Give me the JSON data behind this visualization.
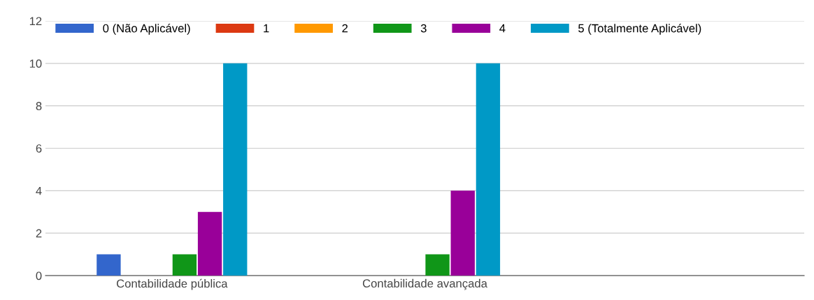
{
  "chart_data": {
    "type": "bar",
    "categories": [
      "Contabilidade pública",
      "Contabilidade avançada",
      null
    ],
    "series": [
      {
        "name": "0 (Não Aplicável)",
        "color": "#3366cc",
        "values": [
          1,
          0,
          null
        ]
      },
      {
        "name": "1",
        "color": "#dc3912",
        "values": [
          0,
          0,
          null
        ]
      },
      {
        "name": "2",
        "color": "#ff9900",
        "values": [
          0,
          0,
          null
        ]
      },
      {
        "name": "3",
        "color": "#109618",
        "values": [
          1,
          1,
          null
        ]
      },
      {
        "name": "4",
        "color": "#990099",
        "values": [
          3,
          4,
          null
        ]
      },
      {
        "name": "5 (Totalmente Aplicável)",
        "color": "#0099c6",
        "values": [
          10,
          10,
          null
        ]
      }
    ],
    "ylim": [
      0,
      12
    ],
    "yticks": [
      0,
      2,
      4,
      6,
      8,
      10,
      12
    ],
    "grid": "y",
    "legend": "top"
  }
}
